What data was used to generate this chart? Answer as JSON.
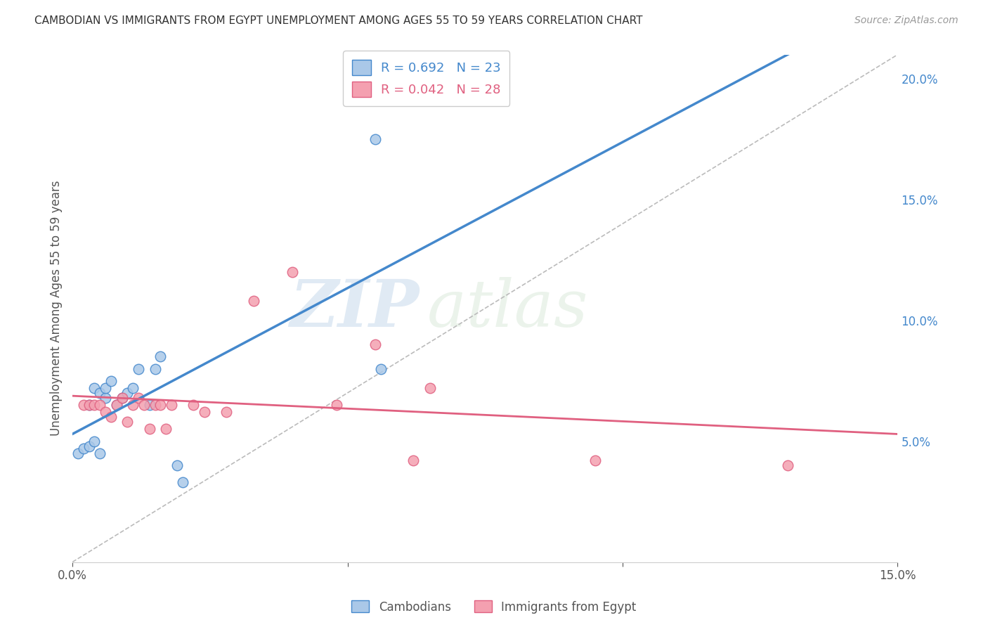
{
  "title": "CAMBODIAN VS IMMIGRANTS FROM EGYPT UNEMPLOYMENT AMONG AGES 55 TO 59 YEARS CORRELATION CHART",
  "source": "Source: ZipAtlas.com",
  "xlabel": "",
  "ylabel": "Unemployment Among Ages 55 to 59 years",
  "xlim": [
    0.0,
    0.15
  ],
  "ylim": [
    0.0,
    0.21
  ],
  "xticks": [
    0.0,
    0.05,
    0.1,
    0.15
  ],
  "xticklabels": [
    "0.0%",
    "",
    "",
    "15.0%"
  ],
  "yticks_right": [
    0.0,
    0.05,
    0.1,
    0.15,
    0.2
  ],
  "yticklabels_right": [
    "",
    "5.0%",
    "10.0%",
    "15.0%",
    "20.0%"
  ],
  "cambodian_x": [
    0.001,
    0.002,
    0.003,
    0.003,
    0.004,
    0.004,
    0.005,
    0.005,
    0.006,
    0.006,
    0.007,
    0.008,
    0.009,
    0.01,
    0.011,
    0.012,
    0.014,
    0.015,
    0.016,
    0.019,
    0.02,
    0.055,
    0.056
  ],
  "cambodian_y": [
    0.045,
    0.047,
    0.048,
    0.065,
    0.05,
    0.072,
    0.045,
    0.07,
    0.068,
    0.072,
    0.075,
    0.065,
    0.068,
    0.07,
    0.072,
    0.08,
    0.065,
    0.08,
    0.085,
    0.04,
    0.033,
    0.175,
    0.08
  ],
  "egypt_x": [
    0.002,
    0.003,
    0.004,
    0.005,
    0.006,
    0.007,
    0.008,
    0.009,
    0.01,
    0.011,
    0.012,
    0.013,
    0.014,
    0.015,
    0.016,
    0.017,
    0.018,
    0.022,
    0.024,
    0.028,
    0.033,
    0.04,
    0.048,
    0.055,
    0.062,
    0.065,
    0.095,
    0.13
  ],
  "egypt_y": [
    0.065,
    0.065,
    0.065,
    0.065,
    0.062,
    0.06,
    0.065,
    0.068,
    0.058,
    0.065,
    0.068,
    0.065,
    0.055,
    0.065,
    0.065,
    0.055,
    0.065,
    0.065,
    0.062,
    0.062,
    0.108,
    0.12,
    0.065,
    0.09,
    0.042,
    0.072,
    0.042,
    0.04
  ],
  "cambodian_R": 0.692,
  "cambodian_N": 23,
  "egypt_R": 0.042,
  "egypt_N": 28,
  "cambodian_color": "#aac8e8",
  "egypt_color": "#f4a0b0",
  "cambodian_line_color": "#4488cc",
  "egypt_line_color": "#e06080",
  "watermark_zip": "ZIP",
  "watermark_atlas": "atlas",
  "legend_label_cambodian": "Cambodians",
  "legend_label_egypt": "Immigrants from Egypt",
  "background_color": "#ffffff",
  "grid_color": "#cccccc",
  "dash_line": [
    [
      0.0,
      0.15
    ],
    [
      0.0,
      0.21
    ]
  ]
}
